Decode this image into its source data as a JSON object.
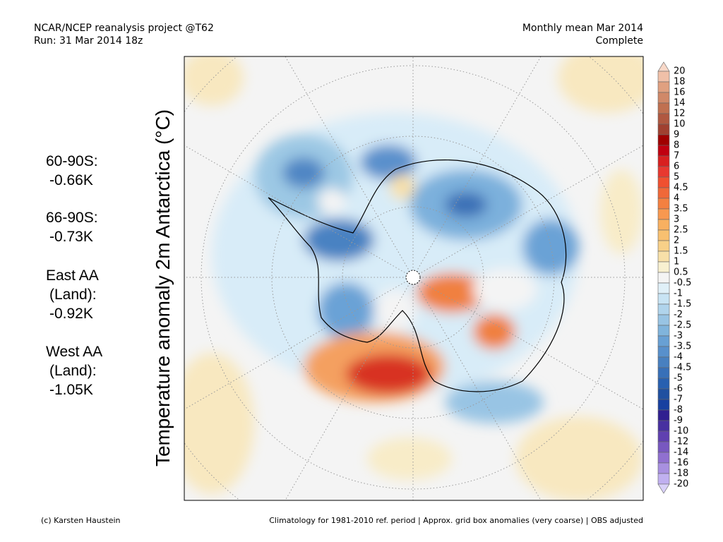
{
  "header": {
    "left": [
      "NCAR/NCEP reanalysis project @T62",
      "Run: 31 Mar 2014 18z"
    ],
    "right": [
      "Monthly mean Mar 2014",
      "Complete"
    ]
  },
  "axis_label": "Temperature anomaly 2m Antarctica (°C)",
  "stats": [
    [
      "60-90S:",
      "-0.66K"
    ],
    [
      "66-90S:",
      "-0.73K"
    ],
    [
      "East AA",
      "(Land):",
      "-0.92K"
    ],
    [
      "West AA",
      "(Land):",
      "-1.05K"
    ]
  ],
  "colorbar": {
    "levels": [
      20,
      18,
      16,
      14,
      12,
      10,
      9,
      8,
      7,
      6,
      5,
      4.5,
      4,
      3.5,
      3,
      2.5,
      2,
      1.5,
      1,
      0.5,
      -0.5,
      -1,
      -1.5,
      -2,
      -2.5,
      -3,
      -3.5,
      -4,
      -4.5,
      -5,
      -6,
      -7,
      -8,
      -9,
      -10,
      -12,
      -14,
      -16,
      -18,
      -20
    ],
    "colors": [
      "#f8d8c8",
      "#f0c0a8",
      "#e0a080",
      "#d08868",
      "#c07050",
      "#b05840",
      "#a04030",
      "#a00000",
      "#c00010",
      "#d82020",
      "#e83830",
      "#f05030",
      "#f06838",
      "#f48040",
      "#f89850",
      "#f8b060",
      "#f8c070",
      "#f8d088",
      "#f8e0a8",
      "#f8f0d0",
      "#f4f4f4",
      "#e0f0f8",
      "#c8e4f4",
      "#b0d4ec",
      "#98c4e4",
      "#80b4dc",
      "#68a0d4",
      "#5890cc",
      "#4880c0",
      "#3870b8",
      "#2860b0",
      "#2050a0",
      "#1840a0",
      "#302090",
      "#4830a0",
      "#6040b0",
      "#7858c0",
      "#9070d0",
      "#a890e0",
      "#c0b0f0",
      "#d8d0f8"
    ]
  },
  "footer": {
    "left": "(c) Karsten Haustein",
    "right": "Climatology for 1981-2010 ref. period | Approx. grid box anomalies (very coarse) | OBS adjusted"
  }
}
